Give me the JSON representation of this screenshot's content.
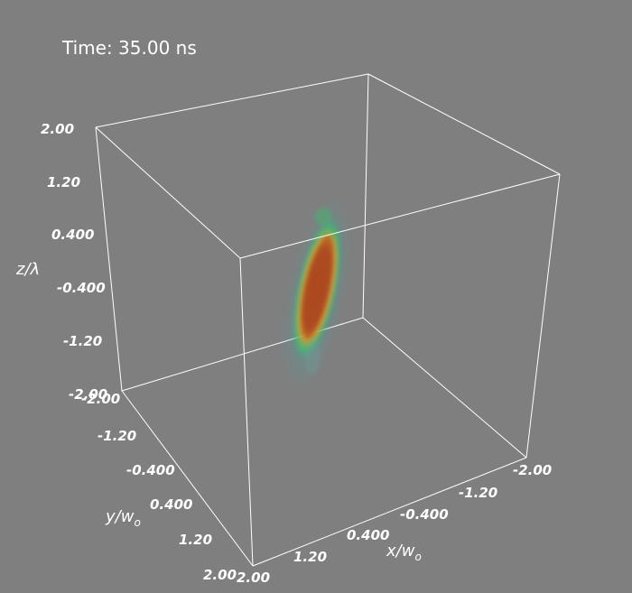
{
  "time_label": "Time: 35.00 ns",
  "axes": {
    "z": {
      "label_main": "z/",
      "label_symbol": "λ",
      "ticks": [
        "2.00",
        "1.20",
        "0.400",
        "-0.400",
        "-1.20",
        "-2.00"
      ]
    },
    "y": {
      "label_main": "y/w",
      "label_sub": "o",
      "ticks": [
        "-2.00",
        "-1.20",
        "-0.400",
        "0.400",
        "1.20",
        "2.00"
      ]
    },
    "x": {
      "label_main": "x/w",
      "label_sub": "o",
      "ticks": [
        "-2.00",
        "-1.20",
        "-0.400",
        "0.400",
        "1.20",
        "2.00"
      ]
    }
  },
  "colors": {
    "background": "#7f7f7f",
    "box_lines": "#ffffff",
    "volume_core": "#b03b1e",
    "volume_mid": "#e88a1c",
    "volume_edge": "#2fc26a"
  }
}
